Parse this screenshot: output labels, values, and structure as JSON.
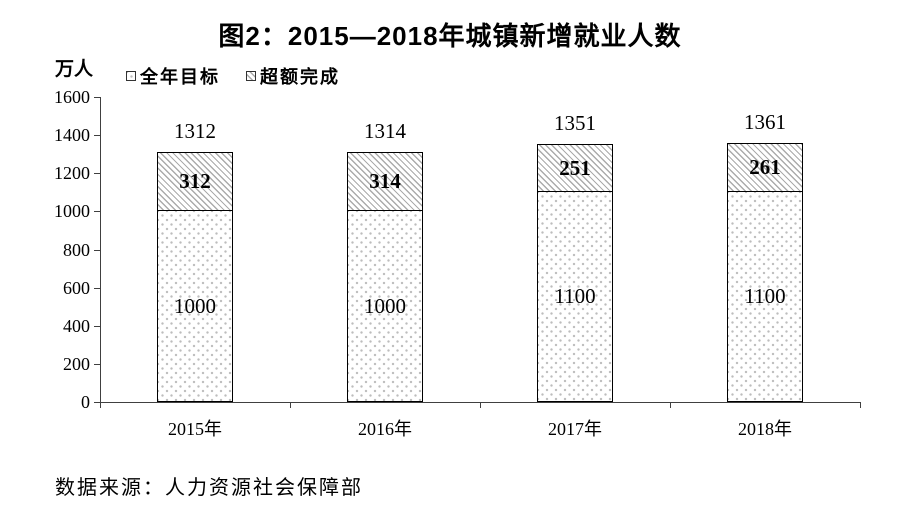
{
  "chart_data": {
    "type": "bar",
    "stacked": true,
    "title": "图2：2015—2018年城镇新增就业人数",
    "xlabel": "",
    "ylabel": "万人",
    "categories": [
      "2015年",
      "2016年",
      "2017年",
      "2018年"
    ],
    "series": [
      {
        "name": "全年目标",
        "pattern": "dotted",
        "values": [
          1000,
          1000,
          1100,
          1100
        ]
      },
      {
        "name": "超额完成",
        "pattern": "diagonal-hatch",
        "values": [
          312,
          314,
          251,
          261
        ]
      }
    ],
    "totals": [
      1312,
      1314,
      1351,
      1361
    ],
    "ylim": [
      0,
      1600
    ],
    "ytick_step": 200,
    "grid": false,
    "legend_position": "top-left"
  },
  "source_note": "数据来源：人力资源社会保障部",
  "colors": {
    "background": "#ffffff",
    "text": "#000000",
    "axis": "#404040",
    "bar_border": "#000000",
    "hatch_line": "#ababab",
    "dot": "#bdbdbd"
  }
}
